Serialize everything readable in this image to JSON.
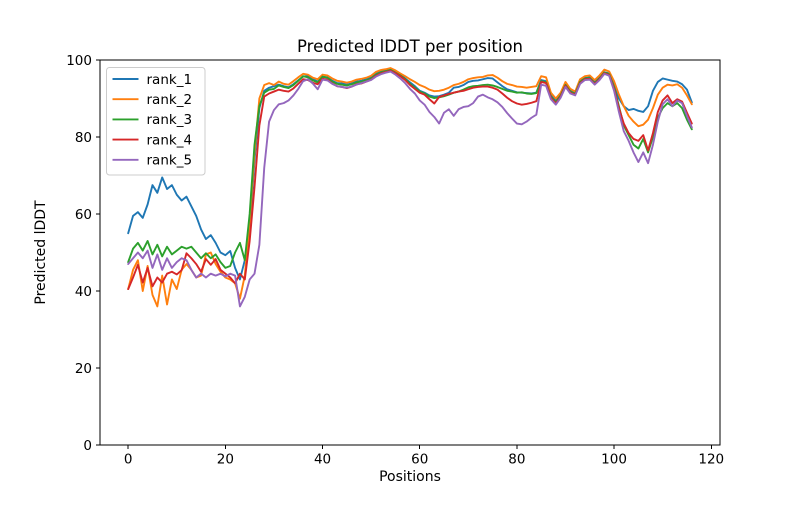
{
  "figure": {
    "background": "#ffffff",
    "spine_color": "#000000",
    "legend_edge_color": "#cccccc",
    "legend_face_color": "#ffffff"
  },
  "chart_data": {
    "type": "line",
    "title": "Predicted lDDT per position",
    "xlabel": "Positions",
    "ylabel": "Predicted lDDT",
    "xlim": [
      -5.8,
      121.8
    ],
    "ylim": [
      0,
      100
    ],
    "xticks": [
      0,
      20,
      40,
      60,
      80,
      100,
      120
    ],
    "yticks": [
      0,
      20,
      40,
      60,
      80,
      100
    ],
    "grid": false,
    "legend_position": "upper left",
    "x_range": {
      "start": 0,
      "end": 116,
      "step": 1
    },
    "series": [
      {
        "name": "rank_1",
        "color": "#1f77b4",
        "values": [
          55,
          59.5,
          60.5,
          59,
          62.5,
          67.5,
          65.5,
          69.5,
          66.5,
          67.5,
          65,
          63.5,
          64.5,
          62,
          59.5,
          56,
          53.5,
          54.5,
          52.5,
          50,
          49.3,
          50.4,
          46,
          43,
          48,
          56,
          74,
          87.5,
          92,
          92.8,
          93.2,
          93.6,
          93.2,
          92.9,
          93.7,
          94.7,
          95.7,
          95.9,
          95,
          94.4,
          95.6,
          95.5,
          94.6,
          94,
          93.9,
          93.6,
          93.9,
          94.4,
          94.6,
          95,
          95.5,
          96.5,
          97.1,
          97.4,
          97.6,
          97,
          96.2,
          95.2,
          94.2,
          93.2,
          92,
          91.5,
          90.8,
          90.5,
          90.6,
          91,
          91.5,
          92.8,
          93,
          93.5,
          94.3,
          94.6,
          94.7,
          95,
          95.3,
          95.2,
          94.2,
          93.2,
          92.4,
          92,
          91.6,
          91.5,
          91.4,
          91.3,
          91.5,
          94.8,
          94.5,
          91,
          89.5,
          91,
          93.8,
          92,
          91.3,
          94.5,
          95.3,
          95.5,
          94.3,
          95.5,
          96.8,
          96.5,
          93.5,
          90,
          88,
          87,
          87.3,
          86.8,
          86.5,
          88,
          92,
          94.3,
          95.2,
          94.9,
          94.6,
          94.4,
          93.7,
          92.3,
          89
        ]
      },
      {
        "name": "rank_2",
        "color": "#ff7f0e",
        "values": [
          40.5,
          45.5,
          48,
          40,
          46.5,
          39,
          36,
          44,
          36.5,
          43,
          40.5,
          45.5,
          47,
          45.5,
          43.5,
          44,
          49.5,
          50,
          47,
          45,
          43.5,
          43,
          42,
          38,
          44,
          58,
          76,
          90,
          93.5,
          94,
          93.5,
          94.4,
          93.8,
          93.6,
          94.5,
          95.5,
          96.4,
          96.2,
          95.4,
          95,
          96.2,
          96,
          95.2,
          94.6,
          94.4,
          94.1,
          94.4,
          94.9,
          95.1,
          95.4,
          95.9,
          96.9,
          97.4,
          97.6,
          97.9,
          97.3,
          96.5,
          95.8,
          95,
          94.3,
          93.5,
          93,
          92.3,
          91.9,
          92,
          92.3,
          92.8,
          93.5,
          93.8,
          94.3,
          95,
          95.3,
          95.5,
          95.6,
          96,
          96.1,
          95.4,
          94.5,
          93.8,
          93.5,
          93.1,
          93,
          92.8,
          93,
          93.2,
          95.8,
          95.5,
          91.5,
          90,
          91.5,
          94.3,
          92.5,
          91.8,
          95,
          95.8,
          96,
          94.8,
          96,
          97.5,
          97,
          94.5,
          91,
          88,
          85.5,
          84,
          82.8,
          83.2,
          84.5,
          87.5,
          91,
          92.8,
          93.6,
          93.4,
          93.7,
          92.8,
          90.8,
          88.5
        ]
      },
      {
        "name": "rank_3",
        "color": "#2ca02c",
        "values": [
          47.5,
          51,
          52.5,
          50.5,
          53,
          49.5,
          52,
          49,
          51.5,
          49.5,
          50.5,
          51.5,
          51,
          51.5,
          50,
          48.5,
          49.8,
          48.5,
          49.5,
          47.5,
          46,
          46.5,
          50,
          52.5,
          48,
          60,
          78,
          88,
          91.5,
          92.3,
          92.5,
          93.4,
          93,
          92.7,
          93.5,
          94.6,
          95.8,
          95.5,
          94.7,
          94.2,
          95.7,
          95.4,
          94.4,
          93.8,
          93.6,
          93.4,
          93.7,
          94.2,
          94.4,
          94.7,
          95.2,
          96.2,
          96.8,
          97.1,
          97.4,
          96.7,
          96,
          95,
          93.8,
          92.8,
          91.8,
          91.3,
          90.5,
          90.1,
          90.3,
          90.6,
          91,
          91.5,
          91.8,
          92.3,
          92.9,
          93.2,
          93.3,
          93.5,
          93.6,
          93.4,
          93,
          92.5,
          92,
          91.8,
          91.5,
          91.6,
          91.3,
          91.2,
          91.4,
          94.5,
          94.2,
          90.5,
          89,
          90.8,
          93.5,
          91.8,
          91.2,
          94.3,
          95.2,
          95.3,
          94,
          95.2,
          96.8,
          96.3,
          93,
          88,
          83,
          80.5,
          78,
          77,
          79.5,
          76,
          80,
          85,
          87.5,
          88.8,
          88,
          88.8,
          87.5,
          84.5,
          82
        ]
      },
      {
        "name": "rank_4",
        "color": "#d62728",
        "values": [
          40.5,
          43.5,
          46.8,
          42.2,
          46,
          41.2,
          43.5,
          42.2,
          44.5,
          45,
          44.3,
          45.4,
          49.8,
          48.5,
          47,
          45,
          48.3,
          46.8,
          48.3,
          45.5,
          44.5,
          43.5,
          42,
          44.5,
          43,
          53,
          67,
          83,
          90.5,
          91.3,
          91.8,
          92.3,
          92,
          91.8,
          92.6,
          93.8,
          95,
          94.8,
          94.1,
          93.7,
          95.1,
          94.9,
          93.9,
          93.2,
          93,
          92.7,
          93.1,
          93.7,
          93.9,
          94.4,
          94.9,
          95.9,
          96.5,
          96.9,
          97.2,
          96.6,
          95.8,
          94.8,
          93.5,
          92.5,
          91.5,
          91,
          89.8,
          88.7,
          90.4,
          90.8,
          91.2,
          91.5,
          91.8,
          92,
          92.4,
          92.8,
          93,
          93.1,
          93.1,
          92.8,
          92.3,
          91.3,
          90.2,
          89.3,
          88.7,
          88.4,
          88.6,
          88.9,
          89.3,
          94.3,
          94,
          90.2,
          88.7,
          90.5,
          93.3,
          91.5,
          91,
          94,
          95,
          95.1,
          93.8,
          95,
          96.6,
          96.1,
          92.5,
          87.5,
          83.5,
          81,
          79.5,
          79,
          80.5,
          76.5,
          81,
          86.5,
          89.5,
          90.8,
          88.8,
          89.8,
          89.2,
          86.3,
          83.5
        ]
      },
      {
        "name": "rank_5",
        "color": "#9467bd",
        "values": [
          47,
          48.5,
          50,
          48.5,
          50.5,
          46,
          49.5,
          45.5,
          48.5,
          46,
          47.5,
          48.5,
          48,
          45.5,
          43.5,
          44.5,
          43.5,
          44.5,
          44,
          44.5,
          43.8,
          44.5,
          44,
          36,
          38.5,
          43,
          44.5,
          52,
          72,
          84,
          87,
          88.5,
          88.8,
          89.5,
          90.8,
          92.5,
          94.5,
          95,
          93.9,
          92.4,
          94.9,
          94.7,
          93.8,
          93.2,
          93,
          92.8,
          93.1,
          93.6,
          94,
          94.4,
          94.8,
          95.7,
          96.3,
          96.7,
          97,
          96.2,
          95.2,
          94,
          92.5,
          91.3,
          89.5,
          88.4,
          86.5,
          85.2,
          83.5,
          86.3,
          87.2,
          85.5,
          87.2,
          87.8,
          88,
          88.8,
          90.5,
          91,
          90.3,
          89.8,
          89,
          87.8,
          86.2,
          84.8,
          83.5,
          83.3,
          84,
          85,
          85.8,
          93.6,
          93.3,
          89.8,
          88.4,
          90.2,
          93,
          91.3,
          90.8,
          93.8,
          94.8,
          94.9,
          93.6,
          94.8,
          96.4,
          95.9,
          92,
          86.5,
          81.5,
          79,
          76,
          73.5,
          76,
          73.2,
          78,
          84,
          88.5,
          89.8,
          88,
          89.5,
          88.8,
          85.5,
          82.5
        ]
      }
    ]
  }
}
